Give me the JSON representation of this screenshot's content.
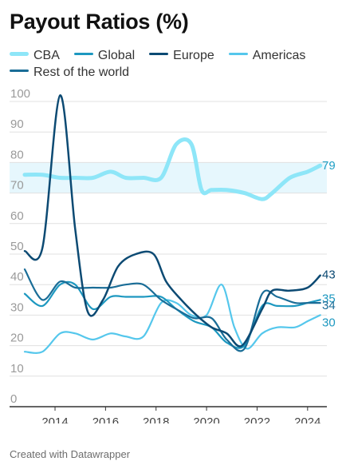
{
  "title": "Payout Ratios (%)",
  "footer": "Created with Datawrapper",
  "colors": {
    "CBA": "#8ee6f8",
    "Global": "#1d98c0",
    "Europe": "#0c4a73",
    "Americas": "#55c7ec",
    "Rest of the world": "#1a6d97",
    "band": "#e6f7fd",
    "grid": "#e0e0e0",
    "tick": "#9a9a9a",
    "baseline": "#333333"
  },
  "chart_data": {
    "type": "line",
    "title": "Payout Ratios (%)",
    "xlabel": "",
    "ylabel": "",
    "xlim": [
      2012.2,
      2024.7
    ],
    "ylim": [
      0,
      103
    ],
    "x_ticks": [
      2014,
      2016,
      2018,
      2020,
      2022,
      2024
    ],
    "y_ticks": [
      0,
      10,
      20,
      30,
      40,
      50,
      60,
      70,
      80,
      90,
      100
    ],
    "highlight_band": [
      70,
      80
    ],
    "legend_position": "top",
    "series": [
      {
        "name": "CBA",
        "end_label": "79",
        "x": [
          2012.8,
          2013.5,
          2014.2,
          2014.8,
          2015.5,
          2016.2,
          2016.8,
          2017.5,
          2018.2,
          2018.8,
          2019.4,
          2019.8,
          2020.2,
          2020.8,
          2021.5,
          2022.2,
          2022.6,
          2023.3,
          2024.0,
          2024.5
        ],
        "values": [
          76,
          76,
          75,
          75,
          75,
          77,
          75,
          75,
          75,
          86,
          86,
          71,
          71,
          71,
          70,
          68,
          70,
          75,
          77,
          79
        ]
      },
      {
        "name": "Global",
        "end_label": "35",
        "x": [
          2012.8,
          2013.5,
          2014.2,
          2014.8,
          2015.5,
          2016.2,
          2016.8,
          2017.5,
          2018.2,
          2018.8,
          2019.5,
          2020.2,
          2020.8,
          2021.5,
          2022.2,
          2022.8,
          2023.5,
          2024.0,
          2024.5
        ],
        "values": [
          37,
          33,
          40,
          40,
          32,
          36,
          36,
          36,
          36,
          32,
          28,
          26,
          21,
          20,
          33,
          33,
          33,
          34,
          35
        ]
      },
      {
        "name": "Europe",
        "end_label": "43",
        "x": [
          2012.8,
          2013.5,
          2014.2,
          2014.8,
          2015.3,
          2015.9,
          2016.5,
          2017.2,
          2017.9,
          2018.4,
          2019.0,
          2019.6,
          2020.2,
          2020.8,
          2021.4,
          2022.2,
          2022.6,
          2023.3,
          2024.0,
          2024.5
        ],
        "values": [
          51,
          52,
          102,
          58,
          31,
          35,
          46,
          50,
          50,
          41,
          35,
          30,
          26,
          24,
          20,
          32,
          38,
          38,
          39,
          43
        ]
      },
      {
        "name": "Americas",
        "end_label": "30",
        "x": [
          2012.8,
          2013.5,
          2014.2,
          2014.8,
          2015.5,
          2016.2,
          2016.8,
          2017.5,
          2018.2,
          2018.8,
          2019.4,
          2020.0,
          2020.6,
          2021.1,
          2021.6,
          2022.2,
          2022.8,
          2023.5,
          2024.0,
          2024.5
        ],
        "values": [
          18,
          18,
          24,
          24,
          22,
          24,
          23,
          23,
          34,
          34,
          30,
          30,
          40,
          26,
          19,
          24,
          26,
          26,
          28,
          30
        ]
      },
      {
        "name": "Rest of the world",
        "end_label": "34",
        "x": [
          2012.8,
          2013.5,
          2014.2,
          2014.8,
          2015.5,
          2016.2,
          2016.8,
          2017.5,
          2018.2,
          2018.8,
          2019.5,
          2020.2,
          2020.8,
          2021.5,
          2022.2,
          2022.8,
          2023.5,
          2024.0,
          2024.5
        ],
        "values": [
          45,
          35,
          41,
          39,
          39,
          39,
          40,
          40,
          35,
          32,
          29,
          29,
          22,
          19,
          37,
          36,
          34,
          34,
          34
        ]
      }
    ]
  }
}
